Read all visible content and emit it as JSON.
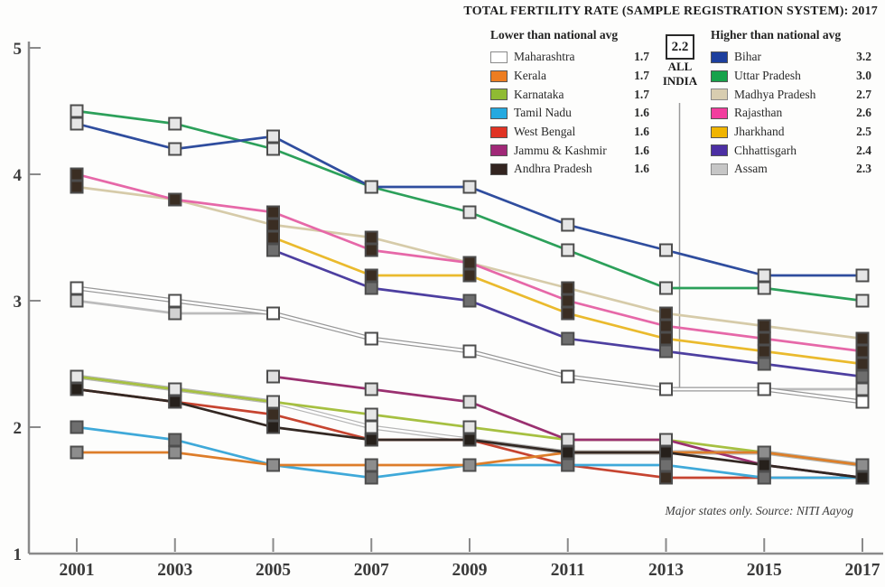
{
  "title": "TOTAL FERTILITY RATE (SAMPLE REGISTRATION SYSTEM): 2017",
  "source_note": "Major states only. Source: NITI Aayog",
  "all_india_callout": {
    "value": "2.2",
    "line1": "ALL",
    "line2": "INDIA"
  },
  "legend_lower": {
    "header": "Lower than national avg",
    "items": [
      {
        "state": "Maharashtra",
        "value": "1.7",
        "swatch": "#ffffff",
        "border": "#8a8a8a"
      },
      {
        "state": "Kerala",
        "value": "1.7",
        "swatch": "#ed7d21",
        "border": "#555555"
      },
      {
        "state": "Karnataka",
        "value": "1.7",
        "swatch": "#8fbb33",
        "border": "#555555"
      },
      {
        "state": "Tamil Nadu",
        "value": "1.6",
        "swatch": "#25a9e0",
        "border": "#555555"
      },
      {
        "state": "West Bengal",
        "value": "1.6",
        "swatch": "#e03324",
        "border": "#555555"
      },
      {
        "state": "Jammu & Kashmir",
        "value": "1.6",
        "swatch": "#a02877",
        "border": "#555555"
      },
      {
        "state": "Andhra Pradesh",
        "value": "1.6",
        "swatch": "#332420",
        "border": "#555555"
      }
    ]
  },
  "legend_higher": {
    "header": "Higher than national avg",
    "items": [
      {
        "state": "Bihar",
        "value": "3.2",
        "swatch": "#1d3f9e",
        "border": "#555555"
      },
      {
        "state": "Uttar Pradesh",
        "value": "3.0",
        "swatch": "#17a24b",
        "border": "#555555"
      },
      {
        "state": "Madhya Pradesh",
        "value": "2.7",
        "swatch": "#d8cdb0",
        "border": "#8a8a8a"
      },
      {
        "state": "Rajasthan",
        "value": "2.6",
        "swatch": "#f23e9e",
        "border": "#555555"
      },
      {
        "state": "Jharkhand",
        "value": "2.5",
        "swatch": "#f0b400",
        "border": "#555555"
      },
      {
        "state": "Chhattisgarh",
        "value": "2.4",
        "swatch": "#4c2fa3",
        "border": "#555555"
      },
      {
        "state": "Assam",
        "value": "2.3",
        "swatch": "#c6c6c6",
        "border": "#8a8a8a"
      }
    ]
  },
  "chart_data": {
    "type": "line",
    "title": "TOTAL FERTILITY RATE (SAMPLE REGISTRATION SYSTEM): 2017",
    "xlabel": "",
    "ylabel": "",
    "x": [
      2001,
      2003,
      2005,
      2007,
      2009,
      2011,
      2013,
      2015,
      2017
    ],
    "ylim": [
      1,
      5
    ],
    "yticks": [
      1,
      2,
      3,
      4,
      5
    ],
    "grid": false,
    "legend_position": "top",
    "annotation": "2.2 ALL INDIA",
    "series": [
      {
        "name": "Madhya Pradesh",
        "color": "#d6cba9",
        "marker": "#3a2d22",
        "outline": false,
        "values": [
          3.9,
          3.8,
          3.6,
          3.5,
          3.3,
          3.1,
          2.9,
          2.8,
          2.7
        ]
      },
      {
        "name": "Assam",
        "color": "#bcbcbc",
        "marker": "#d2d2d2",
        "outline": false,
        "values": [
          3.0,
          2.9,
          2.9,
          2.7,
          2.6,
          2.4,
          2.3,
          2.3,
          2.3
        ]
      },
      {
        "name": "All India",
        "color": "#979797",
        "marker": "#ffffff",
        "outline": true,
        "values": [
          3.1,
          3.0,
          2.9,
          2.7,
          2.6,
          2.4,
          2.3,
          2.3,
          2.2
        ]
      },
      {
        "name": "Maharashtra",
        "color": "#b5b5b5",
        "marker": "#f2f2f2",
        "outline": true,
        "values": [
          2.4,
          2.3,
          2.2,
          2.0,
          1.9,
          1.8,
          1.8,
          1.8,
          1.7
        ]
      },
      {
        "name": "Uttar Pradesh",
        "color": "#2ca05a",
        "marker": "#e6e6e6",
        "outline": false,
        "values": [
          4.5,
          4.4,
          4.2,
          3.9,
          3.7,
          3.4,
          3.1,
          3.1,
          3.0
        ]
      },
      {
        "name": "Bihar",
        "color": "#2f4d9e",
        "marker": "#e6e6e6",
        "outline": false,
        "values": [
          4.4,
          4.2,
          4.3,
          3.9,
          3.9,
          3.6,
          3.4,
          3.2,
          3.2
        ]
      },
      {
        "name": "Rajasthan",
        "color": "#e668a8",
        "marker": "#3a2d22",
        "outline": false,
        "values": [
          4.0,
          3.8,
          3.7,
          3.4,
          3.3,
          3.0,
          2.8,
          2.7,
          2.6
        ]
      },
      {
        "name": "Jharkhand",
        "color": "#eaba2d",
        "marker": "#3a2d22",
        "outline": false,
        "values": [
          null,
          null,
          3.5,
          3.2,
          3.2,
          2.9,
          2.7,
          2.6,
          2.5
        ]
      },
      {
        "name": "Chhattisgarh",
        "color": "#4d3fa0",
        "marker": "#6e6e6e",
        "outline": false,
        "values": [
          null,
          null,
          3.4,
          3.1,
          3.0,
          2.7,
          2.6,
          2.5,
          2.4
        ]
      },
      {
        "name": "Karnataka",
        "color": "#a6c041",
        "marker": "#e6e6e6",
        "outline": false,
        "values": [
          2.4,
          2.3,
          2.2,
          2.1,
          2.0,
          1.9,
          1.9,
          1.8,
          1.7
        ]
      },
      {
        "name": "West Bengal",
        "color": "#c64430",
        "marker": "#3a2d22",
        "outline": false,
        "values": [
          2.3,
          2.2,
          2.1,
          1.9,
          1.9,
          1.7,
          1.6,
          1.6,
          1.6
        ]
      },
      {
        "name": "Jammu & Kashmir",
        "color": "#9a3070",
        "marker": "#e0e0e0",
        "outline": false,
        "values": [
          null,
          null,
          2.4,
          2.3,
          2.2,
          1.9,
          1.9,
          1.7,
          1.6
        ]
      },
      {
        "name": "Tamil Nadu",
        "color": "#3fa9d9",
        "marker": "#6e6e6e",
        "outline": false,
        "values": [
          2.0,
          1.9,
          1.7,
          1.6,
          1.7,
          1.7,
          1.7,
          1.6,
          1.6
        ]
      },
      {
        "name": "Kerala",
        "color": "#dd7d2a",
        "marker": "#8d8d8d",
        "outline": false,
        "values": [
          1.8,
          1.8,
          1.7,
          1.7,
          1.7,
          1.8,
          1.8,
          1.8,
          1.7
        ]
      },
      {
        "name": "Andhra Pradesh",
        "color": "#332823",
        "marker": "#26201b",
        "outline": false,
        "values": [
          2.3,
          2.2,
          2.0,
          1.9,
          1.9,
          1.8,
          1.8,
          1.7,
          1.6
        ]
      }
    ]
  },
  "axis": {
    "x_labels": [
      "2001",
      "2003",
      "2005",
      "2007",
      "2009",
      "2011",
      "2013",
      "2015",
      "2017"
    ],
    "y_labels": [
      "1",
      "2",
      "3",
      "4",
      "5"
    ],
    "color": "#8a8a8a",
    "label_color": "#3a3a3a"
  }
}
